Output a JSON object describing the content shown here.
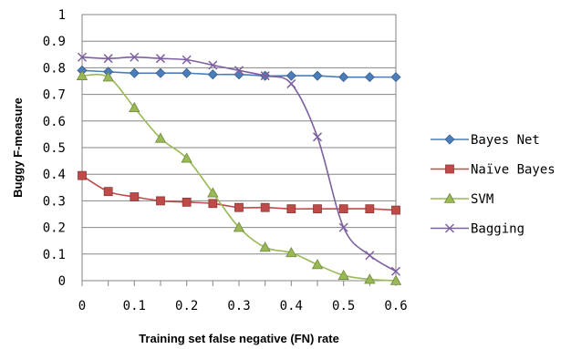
{
  "chart_data": {
    "type": "line",
    "xlabel": "Training set false negative (FN) rate",
    "ylabel": "Buggy F-measure",
    "xlim": [
      0,
      0.6
    ],
    "ylim": [
      0,
      1
    ],
    "x_ticks": [
      "0",
      "0.1",
      "0.2",
      "0.3",
      "0.4",
      "0.5",
      "0.6"
    ],
    "y_ticks": [
      "0",
      "0.1",
      "0.2",
      "0.3",
      "0.4",
      "0.5",
      "0.6",
      "0.7",
      "0.8",
      "0.9",
      "1"
    ],
    "grid": "horizontal",
    "legend_position": "right",
    "x": [
      0,
      0.05,
      0.1,
      0.15,
      0.2,
      0.25,
      0.3,
      0.35,
      0.4,
      0.45,
      0.5,
      0.55,
      0.6
    ],
    "series": [
      {
        "name": "Bayes Net",
        "marker": "diamond",
        "color": "#4a7ebb",
        "values": [
          0.79,
          0.785,
          0.78,
          0.78,
          0.78,
          0.775,
          0.775,
          0.77,
          0.77,
          0.77,
          0.765,
          0.765,
          0.765
        ]
      },
      {
        "name": "Naïve Bayes",
        "marker": "square",
        "color": "#be4b48",
        "values": [
          0.395,
          0.335,
          0.315,
          0.3,
          0.295,
          0.29,
          0.275,
          0.275,
          0.27,
          0.27,
          0.27,
          0.27,
          0.265
        ]
      },
      {
        "name": "SVM",
        "marker": "triangle",
        "color": "#98b954",
        "values": [
          0.77,
          0.765,
          0.65,
          0.535,
          0.46,
          0.33,
          0.2,
          0.125,
          0.105,
          0.06,
          0.02,
          0.005,
          0.0
        ]
      },
      {
        "name": "Bagging",
        "marker": "x",
        "color": "#7d60a0",
        "values": [
          0.84,
          0.835,
          0.84,
          0.835,
          0.83,
          0.81,
          0.79,
          0.77,
          0.74,
          0.54,
          0.2,
          0.095,
          0.035
        ]
      }
    ]
  }
}
